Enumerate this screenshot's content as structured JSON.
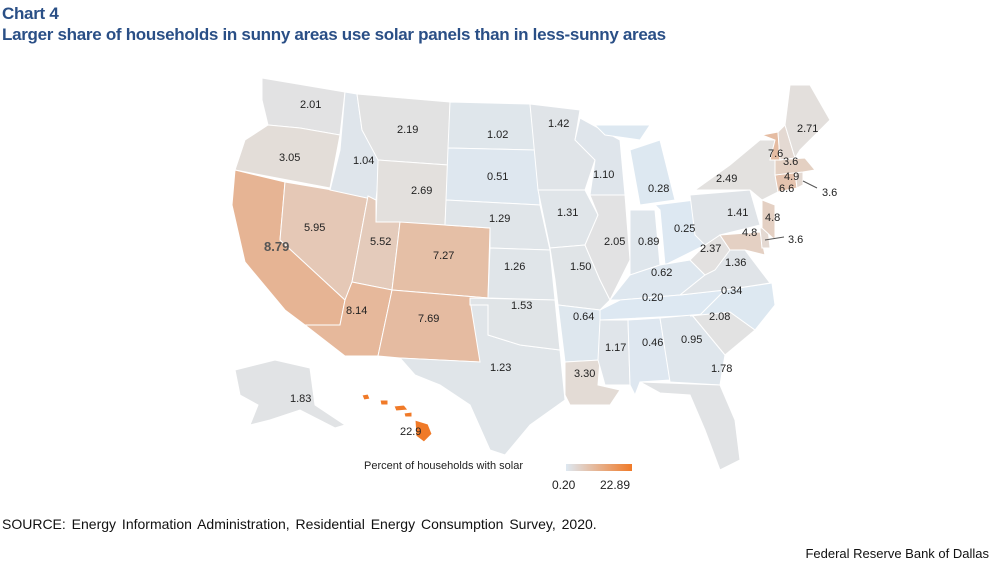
{
  "header": {
    "kicker": "Chart 4",
    "title": "Larger share of households in sunny areas use solar panels than in less-sunny areas"
  },
  "chart_data": {
    "type": "choropleth",
    "measure": "Percent of households with solar",
    "legend": {
      "title": "Percent of households with solar",
      "min_label": "0.20",
      "max_label": "22.89",
      "min": 0.2,
      "max": 22.89,
      "placement": "bottom-center"
    },
    "colors": {
      "low": "#dde8f2",
      "mid": "#e3e1df",
      "high": "#f07a28",
      "title": "#2a4f86"
    },
    "states": [
      {
        "state": "WA",
        "label": "2.01",
        "value": 2.01
      },
      {
        "state": "OR",
        "label": "3.05",
        "value": 3.05
      },
      {
        "state": "CA",
        "label": "8.79",
        "value": 8.79
      },
      {
        "state": "NV",
        "label": "5.95",
        "value": 5.95
      },
      {
        "state": "ID",
        "label": "1.04",
        "value": 1.04
      },
      {
        "state": "MT",
        "label": "2.19",
        "value": 2.19
      },
      {
        "state": "WY",
        "label": "2.69",
        "value": 2.69
      },
      {
        "state": "UT",
        "label": "5.52",
        "value": 5.52
      },
      {
        "state": "CO",
        "label": "7.27",
        "value": 7.27
      },
      {
        "state": "AZ",
        "label": "8.14",
        "value": 8.14
      },
      {
        "state": "NM",
        "label": "7.69",
        "value": 7.69
      },
      {
        "state": "ND",
        "label": "1.02",
        "value": 1.02
      },
      {
        "state": "SD",
        "label": "0.51",
        "value": 0.51
      },
      {
        "state": "NE",
        "label": "1.29",
        "value": 1.29
      },
      {
        "state": "KS",
        "label": "1.26",
        "value": 1.26
      },
      {
        "state": "OK",
        "label": "1.53",
        "value": 1.53
      },
      {
        "state": "TX",
        "label": "1.23",
        "value": 1.23
      },
      {
        "state": "MN",
        "label": "1.42",
        "value": 1.42
      },
      {
        "state": "IA",
        "label": "1.31",
        "value": 1.31
      },
      {
        "state": "MO",
        "label": "1.50",
        "value": 1.5
      },
      {
        "state": "AR",
        "label": "0.64",
        "value": 0.64
      },
      {
        "state": "LA",
        "label": "3.30",
        "value": 3.3
      },
      {
        "state": "WI",
        "label": "1.10",
        "value": 1.1
      },
      {
        "state": "IL",
        "label": "2.05",
        "value": 2.05
      },
      {
        "state": "MI",
        "label": "0.28",
        "value": 0.28
      },
      {
        "state": "IN",
        "label": "0.89",
        "value": 0.89
      },
      {
        "state": "OH",
        "label": "0.25",
        "value": 0.25
      },
      {
        "state": "KY",
        "label": "0.62",
        "value": 0.62
      },
      {
        "state": "TN",
        "label": "0.20",
        "value": 0.2
      },
      {
        "state": "MS",
        "label": "1.17",
        "value": 1.17
      },
      {
        "state": "AL",
        "label": "0.46",
        "value": 0.46
      },
      {
        "state": "GA",
        "label": "0.95",
        "value": 0.95
      },
      {
        "state": "FL",
        "label": "1.78",
        "value": 1.78
      },
      {
        "state": "SC",
        "label": "2.08",
        "value": 2.08
      },
      {
        "state": "NC",
        "label": "0.34",
        "value": 0.34
      },
      {
        "state": "VA",
        "label": "1.36",
        "value": 1.36
      },
      {
        "state": "WV",
        "label": "2.37",
        "value": 2.37
      },
      {
        "state": "PA",
        "label": "1.41",
        "value": 1.41
      },
      {
        "state": "NY",
        "label": "2.49",
        "value": 2.49
      },
      {
        "state": "ME",
        "label": "2.71",
        "value": 2.71
      },
      {
        "state": "VT",
        "label": "7.6",
        "value": 7.6
      },
      {
        "state": "NH",
        "label": "3.6",
        "value": 3.6
      },
      {
        "state": "MA",
        "label": "4.9",
        "value": 4.9
      },
      {
        "state": "CT",
        "label": "6.6",
        "value": 6.6
      },
      {
        "state": "RI",
        "label": "3.6",
        "value": 3.6
      },
      {
        "state": "NJ",
        "label": "4.8",
        "value": 4.8
      },
      {
        "state": "MD",
        "label": "4.8",
        "value": 4.8
      },
      {
        "state": "DE",
        "label": "3.6",
        "value": 3.6
      },
      {
        "state": "AK",
        "label": "1.83",
        "value": 1.83
      },
      {
        "state": "HI",
        "label": "22.9",
        "value": 22.9
      }
    ]
  },
  "footer": {
    "source": "SOURCE: Energy Information Administration, Residential Energy Consumption Survey, 2020.",
    "credit": "Federal Reserve Bank of Dallas"
  }
}
